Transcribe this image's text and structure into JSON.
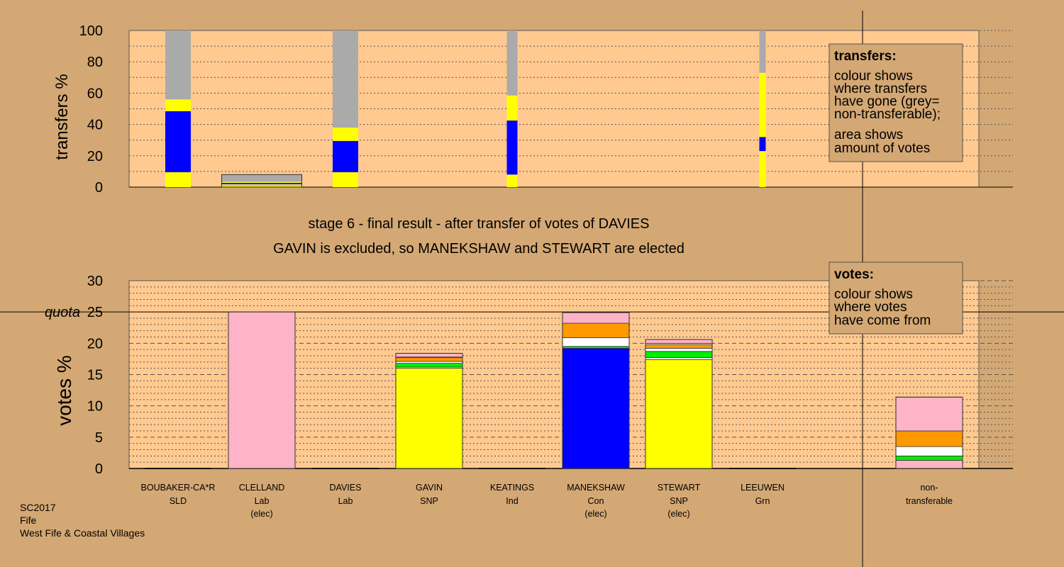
{
  "header": {
    "stage_line": "stage 6 - final result - after transfer of votes of DAVIES",
    "result_line": "GAVIN is excluded, so MANEKSHAW and STEWART are elected"
  },
  "footer": {
    "election": "SC2017",
    "council": "Fife",
    "ward": "West Fife & Coastal Villages"
  },
  "colors": {
    "background": "#d4a874",
    "plot": "#ffc990",
    "SLD": "#ff9900",
    "Lab": "#ffb3c6",
    "SNP": "#ffff00",
    "Ind": "#ffffff",
    "Con": "#0000ff",
    "Grn": "#00ee00",
    "nontransferable": "#aaaaaa"
  },
  "legend_transfers": {
    "title": "transfers:",
    "lines": [
      "colour shows",
      "where transfers",
      "have gone (grey=",
      "non-transferable);",
      "area shows",
      "amount of votes"
    ]
  },
  "legend_votes": {
    "title": "votes:",
    "lines": [
      "colour shows",
      "where votes",
      "have come from"
    ]
  },
  "candidates": [
    {
      "name": "BOUBAKER-CA*R",
      "party": "SLD",
      "status": ""
    },
    {
      "name": "CLELLAND",
      "party": "Lab",
      "status": "(elec)"
    },
    {
      "name": "DAVIES",
      "party": "Lab",
      "status": ""
    },
    {
      "name": "GAVIN",
      "party": "SNP",
      "status": ""
    },
    {
      "name": "KEATINGS",
      "party": "Ind",
      "status": ""
    },
    {
      "name": "MANEKSHAW",
      "party": "Con",
      "status": "(elec)"
    },
    {
      "name": "STEWART",
      "party": "SNP",
      "status": "(elec)"
    },
    {
      "name": "LEEUWEN",
      "party": "Grn",
      "status": ""
    },
    {
      "name": "non-",
      "party": "transferable",
      "status": ""
    }
  ],
  "chart_data": [
    {
      "type": "bar",
      "title": "",
      "ylabel": "transfers %",
      "ylim": [
        0,
        100
      ],
      "yticks": [
        0,
        20,
        40,
        60,
        80,
        100
      ],
      "grid": true,
      "legend": "top-right",
      "bars": [
        {
          "candidate": "BOUBAKER-CA*R",
          "width_share": 0.047,
          "segments": [
            {
              "to": "SNP",
              "value": 9.5
            },
            {
              "to": "Con",
              "value": 39
            },
            {
              "to": "SNP",
              "value": 7.5
            },
            {
              "to": "nontransferable",
              "value": 44
            }
          ]
        },
        {
          "candidate": "CLELLAND",
          "width_share": 0.147,
          "segments": [
            {
              "to": "SNP",
              "value": 0.8
            },
            {
              "to": "Grn",
              "value": 0.4
            },
            {
              "to": "Ind",
              "value": 0.4
            },
            {
              "to": "SLD",
              "value": 0.3
            },
            {
              "to": "Con",
              "value": 0.8
            },
            {
              "to": "SNP",
              "value": 0.7
            },
            {
              "to": "nontransferable",
              "value": 4.6
            }
          ]
        },
        {
          "candidate": "DAVIES",
          "width_share": 0.047,
          "segments": [
            {
              "to": "SNP",
              "value": 9.5
            },
            {
              "to": "Con",
              "value": 20
            },
            {
              "to": "SNP",
              "value": 8.5
            },
            {
              "to": "nontransferable",
              "value": 62
            }
          ]
        },
        {
          "candidate": "KEATINGS",
          "width_share": 0.019,
          "segments": [
            {
              "to": "SNP",
              "value": 8
            },
            {
              "to": "Con",
              "value": 34.5
            },
            {
              "to": "SNP",
              "value": 16
            },
            {
              "to": "nontransferable",
              "value": 41.5
            }
          ]
        },
        {
          "candidate": "LEEUWEN",
          "width_share": 0.012,
          "segments": [
            {
              "to": "SNP",
              "value": 23
            },
            {
              "to": "Con",
              "value": 9
            },
            {
              "to": "SNP",
              "value": 41
            },
            {
              "to": "nontransferable",
              "value": 27
            }
          ]
        }
      ]
    },
    {
      "type": "bar",
      "title": "",
      "ylabel": "votes %",
      "ylim": [
        0,
        30
      ],
      "yticks": [
        0,
        5,
        10,
        15,
        20,
        25,
        30
      ],
      "quota": 25,
      "quota_label": "quota",
      "grid": true,
      "legend": "top-right",
      "categories": [
        "BOUBAKER-CA*R",
        "CLELLAND",
        "DAVIES",
        "GAVIN",
        "KEATINGS",
        "MANEKSHAW",
        "STEWART",
        "LEEUWEN",
        "non-transferable"
      ],
      "bars": [
        {
          "candidate": "BOUBAKER-CA*R",
          "total": 0,
          "segments": []
        },
        {
          "candidate": "CLELLAND",
          "total": 25,
          "segments": [
            {
              "from": "Lab",
              "value": 25
            }
          ]
        },
        {
          "candidate": "DAVIES",
          "total": 0,
          "segments": []
        },
        {
          "candidate": "GAVIN",
          "total": 18.4,
          "segments": [
            {
              "from": "SNP",
              "value": 16
            },
            {
              "from": "Ind",
              "value": 0.2
            },
            {
              "from": "Grn",
              "value": 0.6
            },
            {
              "from": "Ind",
              "value": 0.3
            },
            {
              "from": "SLD",
              "value": 0.6
            },
            {
              "from": "Ind",
              "value": 0.1
            },
            {
              "from": "Lab",
              "value": 0.6
            }
          ]
        },
        {
          "candidate": "KEATINGS",
          "total": 0,
          "segments": []
        },
        {
          "candidate": "MANEKSHAW",
          "total": 24.9,
          "segments": [
            {
              "from": "Con",
              "value": 19.2
            },
            {
              "from": "Grn",
              "value": 0.3
            },
            {
              "from": "Ind",
              "value": 1.4
            },
            {
              "from": "SLD",
              "value": 2.3
            },
            {
              "from": "Lab",
              "value": 1.7
            }
          ]
        },
        {
          "candidate": "STEWART",
          "total": 20.6,
          "segments": [
            {
              "from": "SNP",
              "value": 17.4
            },
            {
              "from": "Ind",
              "value": 0.3
            },
            {
              "from": "Grn",
              "value": 1
            },
            {
              "from": "Ind",
              "value": 0.5
            },
            {
              "from": "SLD",
              "value": 0.6
            },
            {
              "from": "Ind",
              "value": 0.2
            },
            {
              "from": "Lab",
              "value": 0.6
            }
          ]
        },
        {
          "candidate": "LEEUWEN",
          "total": 0,
          "segments": []
        },
        {
          "candidate": "non-transferable",
          "total": 11.4,
          "segments": [
            {
              "from": "Lab",
              "value": 1.3
            },
            {
              "from": "Grn",
              "value": 0.7
            },
            {
              "from": "Ind",
              "value": 1.5
            },
            {
              "from": "SLD",
              "value": 2.5
            },
            {
              "from": "Lab",
              "value": 5.4
            }
          ]
        }
      ]
    }
  ]
}
